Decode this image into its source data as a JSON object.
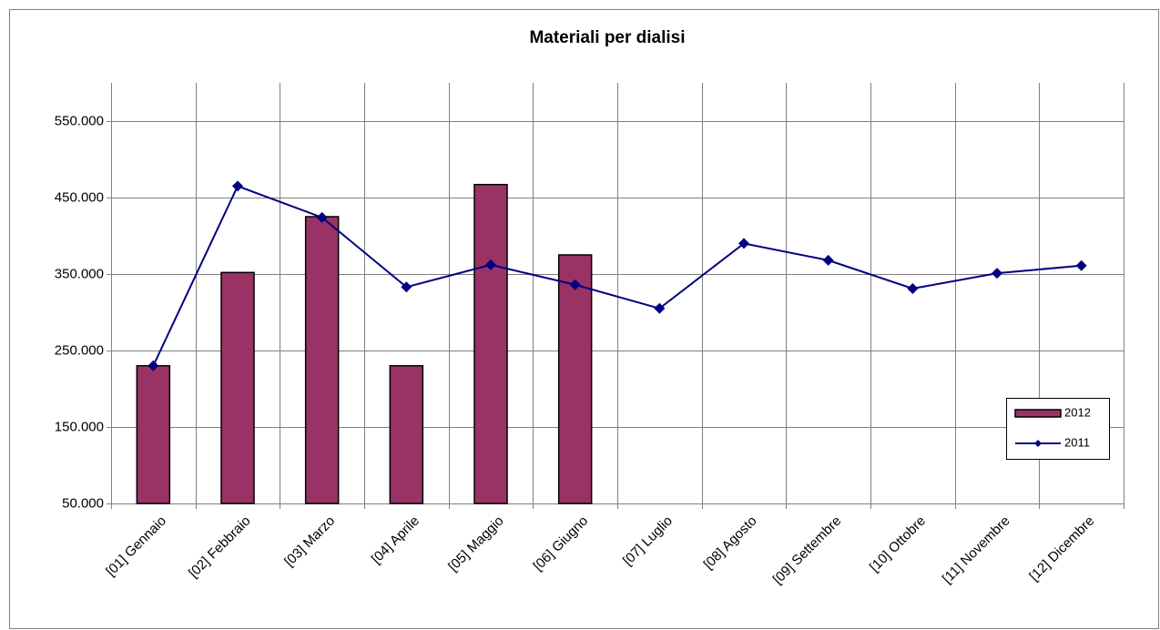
{
  "chart_data": {
    "type": "combo",
    "title": "Materiali per dialisi",
    "categories": [
      "[01] Gennaio",
      "[02] Febbraio",
      "[03] Marzo",
      "[04] Aprile",
      "[05] Maggio",
      "[06] Giugno",
      "[07] Luglio",
      "[08] Agosto",
      "[09] Settembre",
      "[10] Ottobre",
      "[11] Novembre",
      "[12] Dicembre"
    ],
    "series": [
      {
        "name": "2012",
        "type": "bar",
        "color": "#993366",
        "values": [
          230000,
          352000,
          425000,
          230000,
          467000,
          375000,
          null,
          null,
          null,
          null,
          null,
          null
        ]
      },
      {
        "name": "2011",
        "type": "line",
        "color": "#000080",
        "values": [
          230000,
          465000,
          424000,
          333000,
          362000,
          336000,
          305000,
          390000,
          368000,
          331000,
          351000,
          361000
        ]
      }
    ],
    "ylim": [
      50000,
      600000
    ],
    "yticks": [
      {
        "value": 50000,
        "label": "50.000"
      },
      {
        "value": 150000,
        "label": "150.000"
      },
      {
        "value": 250000,
        "label": "250.000"
      },
      {
        "value": 350000,
        "label": "350.000"
      },
      {
        "value": 450000,
        "label": "450.000"
      },
      {
        "value": 550000,
        "label": "550.000"
      }
    ],
    "grid": true,
    "legend": "right"
  }
}
